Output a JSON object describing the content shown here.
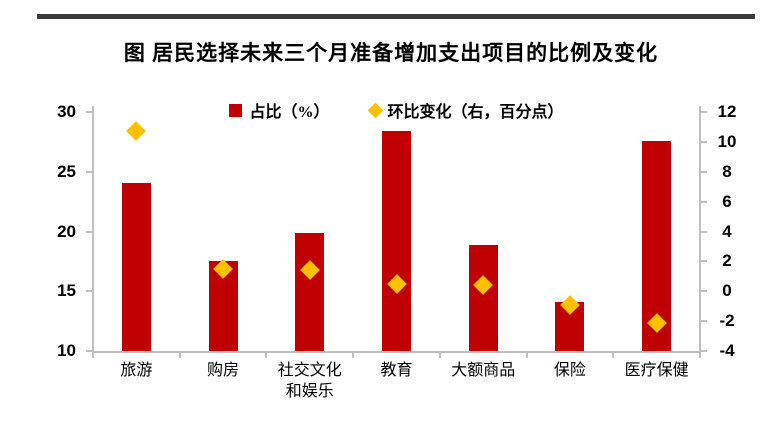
{
  "header": {
    "title": "图  居民选择未来三个月准备增加支出项目的比例及变化"
  },
  "legend": [
    {
      "label": "占比（%）",
      "marker": "square-icon",
      "color": "#c00000"
    },
    {
      "label": "环比变化（右，百分点）",
      "marker": "diamond-icon",
      "color": "#ffc000"
    }
  ],
  "chart_data": {
    "type": "bar",
    "subtype": "bar + scatter(diamond) combo, dual axis",
    "title": "图  居民选择未来三个月准备增加支出项目的比例及变化",
    "categories": [
      "旅游",
      "购房",
      "社交文化\n和娱乐",
      "教育",
      "大额商品",
      "保险",
      "医疗保健"
    ],
    "series": [
      {
        "name": "占比（%）",
        "type": "bar",
        "axis": "left",
        "color": "#c00000",
        "values": [
          24.1,
          17.5,
          19.9,
          28.4,
          18.9,
          14.1,
          27.6
        ]
      },
      {
        "name": "环比变化（右，百分点）",
        "type": "scatter",
        "marker": "diamond",
        "axis": "right",
        "color": "#ffc000",
        "values": [
          10.7,
          1.5,
          1.4,
          0.5,
          0.4,
          -0.9,
          -2.1
        ]
      }
    ],
    "left_axis": {
      "min": 10,
      "max": 30,
      "ticks": [
        30,
        25,
        20,
        15,
        10
      ]
    },
    "right_axis": {
      "min": -4,
      "max": 12,
      "ticks": [
        12,
        10,
        8,
        6,
        4,
        2,
        0,
        -2,
        -4
      ]
    },
    "grid": false,
    "legend_position": "top-center",
    "xlabel": "",
    "ylabel": ""
  },
  "colors": {
    "bar": "#c00000",
    "diamond": "#ffc000",
    "axis": "#bfbfbf",
    "top_rule": "#3a3a3a",
    "text": "#000000"
  }
}
